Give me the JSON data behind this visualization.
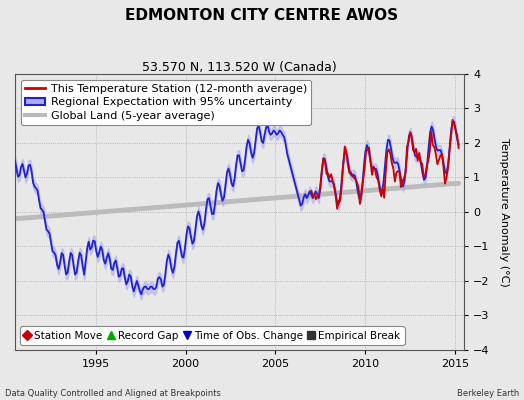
{
  "title": "EDMONTON CITY CENTRE AWOS",
  "subtitle": "53.570 N, 113.520 W (Canada)",
  "xlabel_left": "Data Quality Controlled and Aligned at Breakpoints",
  "xlabel_right": "Berkeley Earth",
  "ylabel": "Temperature Anomaly (°C)",
  "xlim": [
    1990.5,
    2015.5
  ],
  "ylim": [
    -4,
    4
  ],
  "yticks": [
    -4,
    -3,
    -2,
    -1,
    0,
    1,
    2,
    3,
    4
  ],
  "xticks": [
    1995,
    2000,
    2005,
    2010,
    2015
  ],
  "bg_color": "#e8e8e8",
  "legend_items": [
    {
      "label": "This Temperature Station (12-month average)",
      "color": "#cc0000",
      "lw": 2
    },
    {
      "label": "Regional Expectation with 95% uncertainty",
      "color": "#2222cc",
      "lw": 2
    },
    {
      "label": "Global Land (5-year average)",
      "color": "#aaaaaa",
      "lw": 3
    }
  ],
  "marker_legend": [
    {
      "label": "Station Move",
      "marker": "D",
      "color": "#cc0000"
    },
    {
      "label": "Record Gap",
      "marker": "^",
      "color": "#00aa00"
    },
    {
      "label": "Time of Obs. Change",
      "marker": "v",
      "color": "#0000cc"
    },
    {
      "label": "Empirical Break",
      "marker": "s",
      "color": "#333333"
    }
  ],
  "title_fontsize": 11,
  "subtitle_fontsize": 9,
  "axis_fontsize": 8,
  "legend_fontsize": 8
}
